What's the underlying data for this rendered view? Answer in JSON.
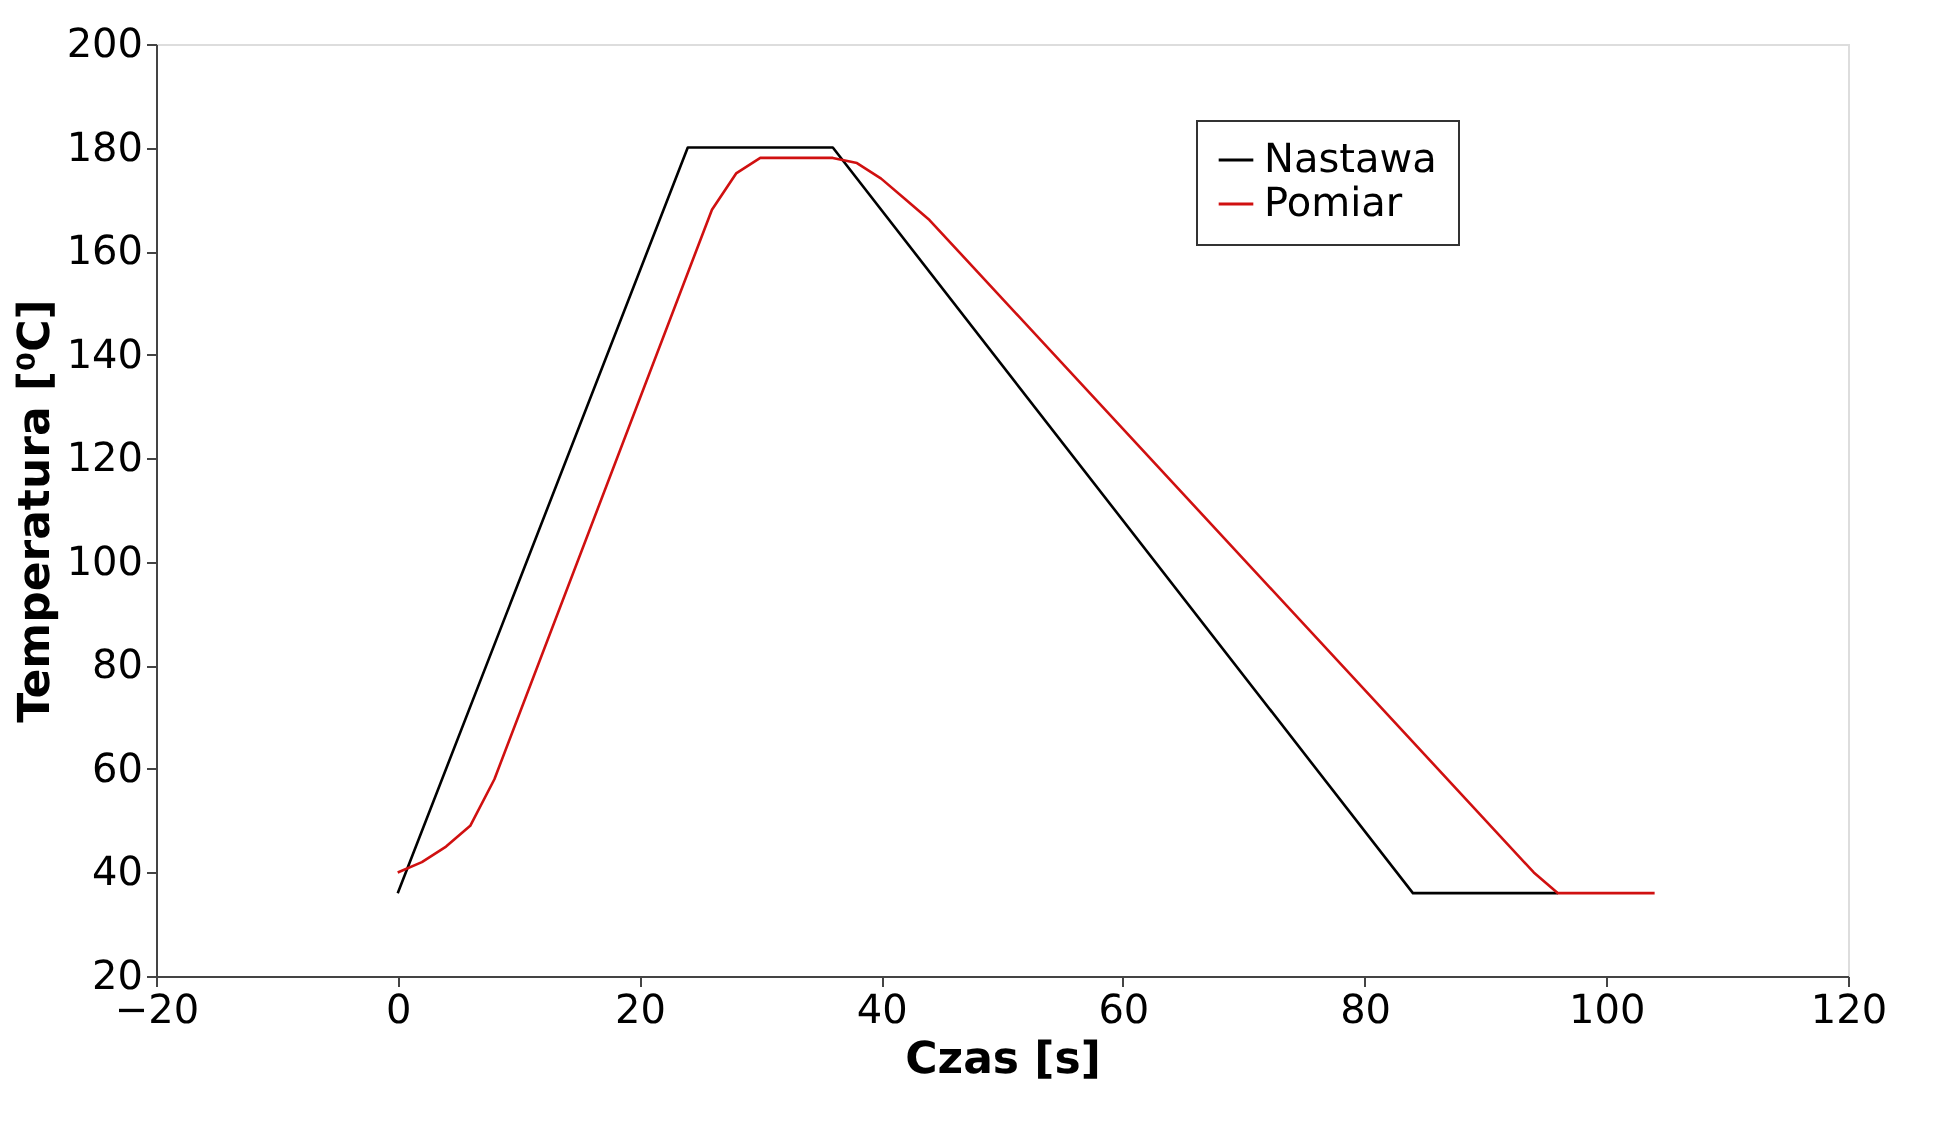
{
  "chart_data": {
    "type": "line",
    "xlabel": "Czas [s]",
    "ylabel": "Temperatura [⁰C]",
    "xlim": [
      -20,
      120
    ],
    "xticks": [
      -20,
      0,
      20,
      40,
      60,
      80,
      100,
      120
    ],
    "ylim": [
      20,
      200
    ],
    "yticks": [
      20,
      40,
      60,
      80,
      100,
      120,
      140,
      160,
      180,
      200
    ],
    "grid": false,
    "legend": "top right",
    "marker": "none",
    "line_style": "solid",
    "series": [
      {
        "name": "Nastawa",
        "color": "#000000",
        "x": [
          0,
          24,
          36,
          84,
          96
        ],
        "values": [
          36,
          180,
          180,
          36,
          36
        ]
      },
      {
        "name": "Pomiar",
        "color": "#d01010",
        "x": [
          0,
          2,
          4,
          6,
          8,
          26,
          28,
          30,
          36,
          38,
          40,
          42,
          44,
          94,
          96,
          104
        ],
        "values": [
          40,
          42,
          45,
          49,
          58,
          168,
          175,
          178,
          178,
          177,
          174,
          170,
          166,
          40,
          36,
          36
        ]
      }
    ]
  }
}
